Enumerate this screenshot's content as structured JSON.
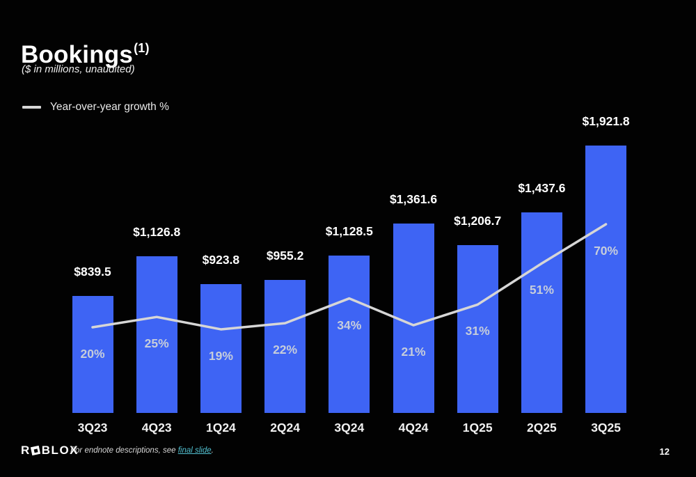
{
  "slide": {
    "title": "Bookings",
    "title_superscript": "(1)",
    "subtitle": "($ in millions, unaudited)",
    "page_number": "12"
  },
  "legend": {
    "label": "Year-over-year growth %"
  },
  "footer": {
    "logo_text_prefix": "R",
    "logo_text_suffix": "BLOX",
    "note_prefix": "For endnote descriptions, see ",
    "note_link": "final slide",
    "note_suffix": "."
  },
  "colors": {
    "background": "#020202",
    "bar": "#3E64F4",
    "line": "#D6D6D6",
    "value_label": "#FFFFFF",
    "pct_label": "#C6CDDB",
    "x_label": "#F2F2F2",
    "link": "#53C3D3"
  },
  "chart_data": {
    "type": "bar",
    "title": "Bookings ($ in millions, unaudited)",
    "categories": [
      "3Q23",
      "4Q23",
      "1Q24",
      "2Q24",
      "3Q24",
      "4Q24",
      "1Q25",
      "2Q25",
      "3Q25"
    ],
    "series": [
      {
        "name": "Bookings ($M)",
        "type": "bar",
        "values": [
          839.5,
          1126.8,
          923.8,
          955.2,
          1128.5,
          1361.6,
          1206.7,
          1437.6,
          1921.8
        ],
        "labels": [
          "$839.5",
          "$1,126.8",
          "$923.8",
          "$955.2",
          "$1,128.5",
          "$1,361.6",
          "$1,206.7",
          "$1,437.6",
          "$1,921.8"
        ]
      },
      {
        "name": "Year-over-year growth %",
        "type": "line",
        "values": [
          20,
          25,
          19,
          22,
          34,
          21,
          31,
          51,
          70
        ],
        "labels": [
          "20%",
          "25%",
          "19%",
          "22%",
          "34%",
          "21%",
          "31%",
          "51%",
          "70%"
        ]
      }
    ],
    "xlabel": "",
    "ylabel": "Bookings ($ in millions)",
    "ylim": [
      0,
      2000
    ],
    "grid": false,
    "legend_position": "top-left"
  }
}
